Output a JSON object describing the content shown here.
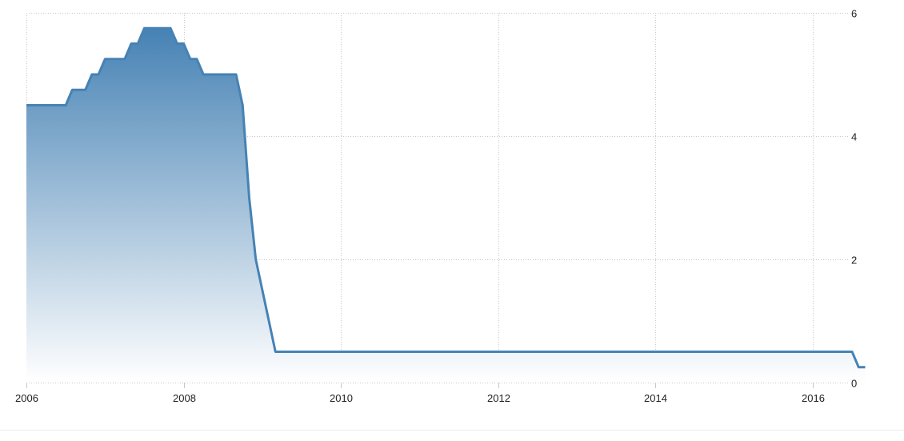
{
  "chart_data": {
    "type": "area",
    "title": "",
    "xlabel": "",
    "ylabel": "",
    "xlim": [
      "2006-01",
      "2016-10"
    ],
    "ylim": [
      0,
      6
    ],
    "grid": true,
    "y_axis_side": "right",
    "x_ticks": [
      "2006",
      "2008",
      "2010",
      "2012",
      "2014",
      "2016"
    ],
    "y_ticks": [
      "0",
      "2",
      "4",
      "6"
    ],
    "line_color": "#4682b4",
    "fill_top_color": "#4682b4",
    "fill_bottom_color": "#ffffff",
    "series": [
      {
        "points": [
          [
            "2006-01",
            4.5
          ],
          [
            "2006-07",
            4.5
          ],
          [
            "2006-08",
            4.75
          ],
          [
            "2006-10",
            4.75
          ],
          [
            "2006-11",
            5.0
          ],
          [
            "2006-12",
            5.0
          ],
          [
            "2007-01",
            5.25
          ],
          [
            "2007-04",
            5.25
          ],
          [
            "2007-05",
            5.5
          ],
          [
            "2007-06",
            5.5
          ],
          [
            "2007-07",
            5.75
          ],
          [
            "2007-11",
            5.75
          ],
          [
            "2007-12",
            5.5
          ],
          [
            "2008-01",
            5.5
          ],
          [
            "2008-02",
            5.25
          ],
          [
            "2008-03",
            5.25
          ],
          [
            "2008-04",
            5.0
          ],
          [
            "2008-09",
            5.0
          ],
          [
            "2008-10",
            4.5
          ],
          [
            "2008-11",
            3.0
          ],
          [
            "2008-12",
            2.0
          ],
          [
            "2009-01",
            1.5
          ],
          [
            "2009-02",
            1.0
          ],
          [
            "2009-03",
            0.5
          ],
          [
            "2016-07",
            0.5
          ],
          [
            "2016-08",
            0.25
          ],
          [
            "2016-09",
            0.25
          ]
        ]
      }
    ]
  }
}
